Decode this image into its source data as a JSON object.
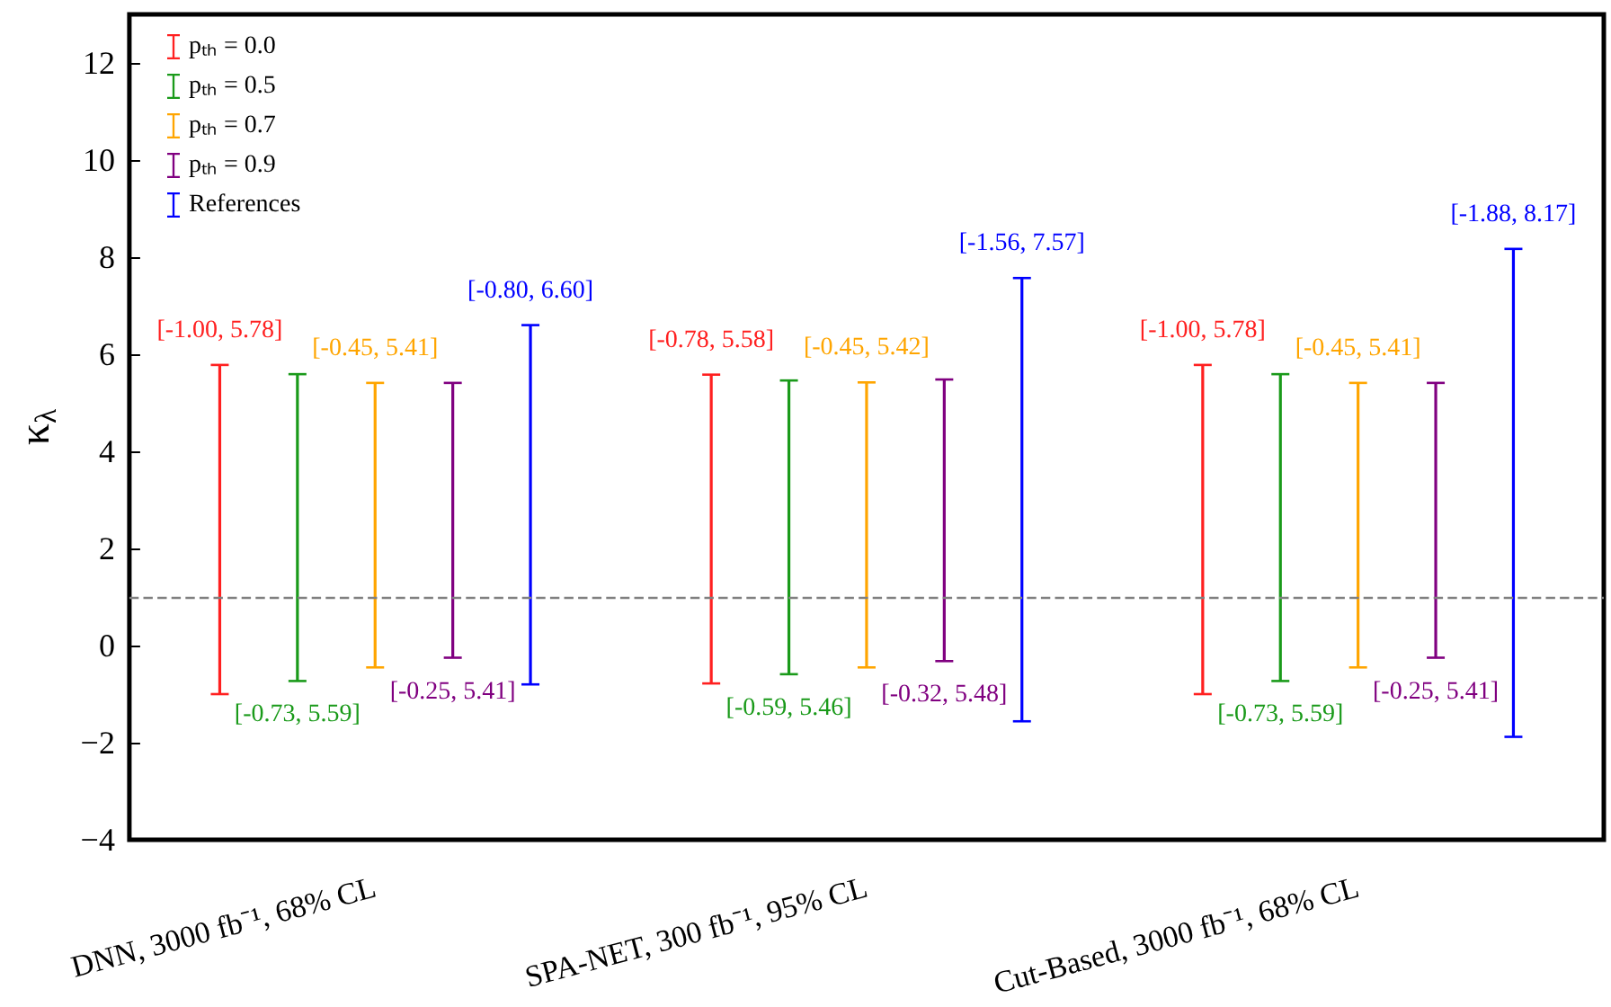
{
  "chart_data": {
    "type": "bar",
    "ylabel": "κ$_{λ}$",
    "categories": [
      "DNN, 3000 fb⁻¹, 68% CL",
      "SPA-NET, 300 fb⁻¹, 95% CL",
      "Cut-Based, 3000 fb⁻¹, 68% CL"
    ],
    "series": [
      {
        "name": "pₜₕ = 0.0",
        "color": "#ff2020",
        "base": [
          -1.0,
          -0.78,
          -1.0
        ],
        "values": [
          6.78,
          6.36,
          6.78
        ],
        "value_labels": [
          "[-1.00, 5.78]",
          "[-0.78, 5.58]",
          "[-1.00, 5.78]"
        ]
      },
      {
        "name": "pₜₕ = 0.5",
        "color": "#1a9a1a",
        "base": [
          -0.73,
          -0.59,
          -0.73
        ],
        "values": [
          6.32,
          6.05,
          6.32
        ],
        "value_labels": [
          "[-0.73, 5.59]",
          "[-0.59, 5.46]",
          "[-0.73, 5.59]"
        ]
      },
      {
        "name": "pₜₕ = 0.7",
        "color": "#ffa500",
        "base": [
          -0.45,
          -0.45,
          -0.45
        ],
        "values": [
          5.86,
          5.87,
          5.86
        ],
        "value_labels": [
          "[-0.45, 5.41]",
          "[-0.45, 5.42]",
          "[-0.45, 5.41]"
        ]
      },
      {
        "name": "pₜₕ = 0.9",
        "color": "#800080",
        "base": [
          -0.25,
          -0.32,
          -0.25
        ],
        "values": [
          5.66,
          5.8,
          5.66
        ],
        "value_labels": [
          "[-0.25, 5.41]",
          "[-0.32, 5.48]",
          "[-0.25, 5.41]"
        ]
      },
      {
        "name": "References",
        "color": "#0000ff",
        "base": [
          -0.8,
          -1.56,
          -1.88
        ],
        "values": [
          7.4,
          9.13,
          10.05
        ],
        "value_labels": [
          "[-0.80, 6.60]",
          "[-1.56, 7.57]",
          "[-1.88, 8.17]"
        ]
      }
    ],
    "ylim": [
      -4,
      13
    ],
    "yticks": [
      -4,
      -2,
      0,
      2,
      4,
      6,
      8,
      10,
      12
    ],
    "legend": "top left",
    "ref_lines": [
      {
        "axis": "y",
        "value": 1,
        "color": "#808080",
        "line_style": "dashed"
      }
    ]
  }
}
